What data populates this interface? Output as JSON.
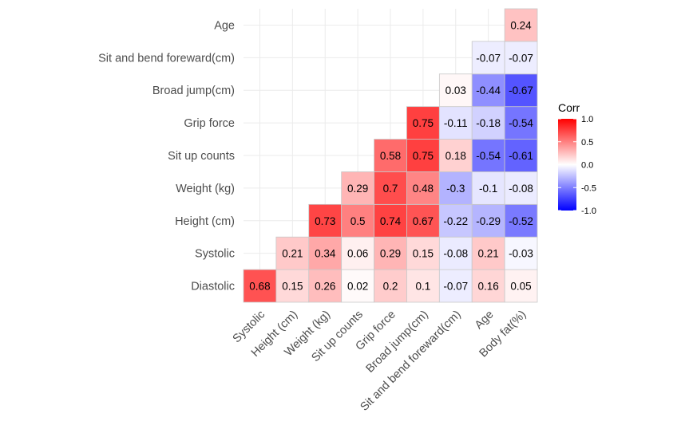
{
  "chart_data": {
    "type": "heatmap",
    "title": "",
    "xlabel": "",
    "ylabel": "",
    "x_categories": [
      "Systolic",
      "Height (cm)",
      "Weight (kg)",
      "Sit up counts",
      "Grip force",
      "Broad jump(cm)",
      "Sit and bend foreward(cm)",
      "Age",
      "Body fat(%)"
    ],
    "y_categories": [
      "Diastolic",
      "Systolic",
      "Height (cm)",
      "Weight (kg)",
      "Sit up counts",
      "Grip force",
      "Broad jump(cm)",
      "Sit and bend foreward(cm)",
      "Age"
    ],
    "cells": [
      {
        "x": "Systolic",
        "y": "Diastolic",
        "value": 0.68,
        "label": "0.68"
      },
      {
        "x": "Height (cm)",
        "y": "Diastolic",
        "value": 0.15,
        "label": "0.15"
      },
      {
        "x": "Height (cm)",
        "y": "Systolic",
        "value": 0.21,
        "label": "0.21"
      },
      {
        "x": "Weight (kg)",
        "y": "Diastolic",
        "value": 0.26,
        "label": "0.26"
      },
      {
        "x": "Weight (kg)",
        "y": "Systolic",
        "value": 0.34,
        "label": "0.34"
      },
      {
        "x": "Weight (kg)",
        "y": "Height (cm)",
        "value": 0.73,
        "label": "0.73"
      },
      {
        "x": "Sit up counts",
        "y": "Diastolic",
        "value": 0.02,
        "label": "0.02"
      },
      {
        "x": "Sit up counts",
        "y": "Systolic",
        "value": 0.06,
        "label": "0.06"
      },
      {
        "x": "Sit up counts",
        "y": "Height (cm)",
        "value": 0.5,
        "label": "0.5"
      },
      {
        "x": "Sit up counts",
        "y": "Weight (kg)",
        "value": 0.29,
        "label": "0.29"
      },
      {
        "x": "Grip force",
        "y": "Diastolic",
        "value": 0.2,
        "label": "0.2"
      },
      {
        "x": "Grip force",
        "y": "Systolic",
        "value": 0.29,
        "label": "0.29"
      },
      {
        "x": "Grip force",
        "y": "Height (cm)",
        "value": 0.74,
        "label": "0.74"
      },
      {
        "x": "Grip force",
        "y": "Weight (kg)",
        "value": 0.7,
        "label": "0.7"
      },
      {
        "x": "Grip force",
        "y": "Sit up counts",
        "value": 0.58,
        "label": "0.58"
      },
      {
        "x": "Broad jump(cm)",
        "y": "Diastolic",
        "value": 0.1,
        "label": "0.1"
      },
      {
        "x": "Broad jump(cm)",
        "y": "Systolic",
        "value": 0.15,
        "label": "0.15"
      },
      {
        "x": "Broad jump(cm)",
        "y": "Height (cm)",
        "value": 0.67,
        "label": "0.67"
      },
      {
        "x": "Broad jump(cm)",
        "y": "Weight (kg)",
        "value": 0.48,
        "label": "0.48"
      },
      {
        "x": "Broad jump(cm)",
        "y": "Sit up counts",
        "value": 0.75,
        "label": "0.75"
      },
      {
        "x": "Broad jump(cm)",
        "y": "Grip force",
        "value": 0.75,
        "label": "0.75"
      },
      {
        "x": "Sit and bend foreward(cm)",
        "y": "Diastolic",
        "value": -0.07,
        "label": "-0.07"
      },
      {
        "x": "Sit and bend foreward(cm)",
        "y": "Systolic",
        "value": -0.08,
        "label": "-0.08"
      },
      {
        "x": "Sit and bend foreward(cm)",
        "y": "Height (cm)",
        "value": -0.22,
        "label": "-0.22"
      },
      {
        "x": "Sit and bend foreward(cm)",
        "y": "Weight (kg)",
        "value": -0.3,
        "label": "-0.3"
      },
      {
        "x": "Sit and bend foreward(cm)",
        "y": "Sit up counts",
        "value": 0.18,
        "label": "0.18"
      },
      {
        "x": "Sit and bend foreward(cm)",
        "y": "Grip force",
        "value": -0.11,
        "label": "-0.11"
      },
      {
        "x": "Sit and bend foreward(cm)",
        "y": "Broad jump(cm)",
        "value": 0.03,
        "label": "0.03"
      },
      {
        "x": "Age",
        "y": "Diastolic",
        "value": 0.16,
        "label": "0.16"
      },
      {
        "x": "Age",
        "y": "Systolic",
        "value": 0.21,
        "label": "0.21"
      },
      {
        "x": "Age",
        "y": "Height (cm)",
        "value": -0.29,
        "label": "-0.29"
      },
      {
        "x": "Age",
        "y": "Weight (kg)",
        "value": -0.1,
        "label": "-0.1"
      },
      {
        "x": "Age",
        "y": "Sit up counts",
        "value": -0.54,
        "label": "-0.54"
      },
      {
        "x": "Age",
        "y": "Grip force",
        "value": -0.18,
        "label": "-0.18"
      },
      {
        "x": "Age",
        "y": "Broad jump(cm)",
        "value": -0.44,
        "label": "-0.44"
      },
      {
        "x": "Age",
        "y": "Sit and bend foreward(cm)",
        "value": -0.07,
        "label": "-0.07"
      },
      {
        "x": "Body fat(%)",
        "y": "Diastolic",
        "value": 0.05,
        "label": "0.05"
      },
      {
        "x": "Body fat(%)",
        "y": "Systolic",
        "value": -0.03,
        "label": "-0.03"
      },
      {
        "x": "Body fat(%)",
        "y": "Height (cm)",
        "value": -0.52,
        "label": "-0.52"
      },
      {
        "x": "Body fat(%)",
        "y": "Weight (kg)",
        "value": -0.08,
        "label": "-0.08"
      },
      {
        "x": "Body fat(%)",
        "y": "Sit up counts",
        "value": -0.61,
        "label": "-0.61"
      },
      {
        "x": "Body fat(%)",
        "y": "Grip force",
        "value": -0.54,
        "label": "-0.54"
      },
      {
        "x": "Body fat(%)",
        "y": "Broad jump(cm)",
        "value": -0.67,
        "label": "-0.67"
      },
      {
        "x": "Body fat(%)",
        "y": "Sit and bend foreward(cm)",
        "value": -0.07,
        "label": "-0.07"
      },
      {
        "x": "Body fat(%)",
        "y": "Age",
        "value": 0.24,
        "label": "0.24"
      }
    ],
    "value_range": [
      -1,
      1
    ],
    "grid": true,
    "legend": {
      "title": "Corr",
      "position": "right",
      "ticks": [
        "1.0",
        "0.5",
        "0.0",
        "-0.5",
        "-1.0"
      ],
      "tick_values": [
        1,
        0.5,
        0,
        -0.5,
        -1
      ],
      "colors": {
        "high": "#ff0000",
        "mid": "#ffffff",
        "low": "#0000ff"
      }
    }
  }
}
